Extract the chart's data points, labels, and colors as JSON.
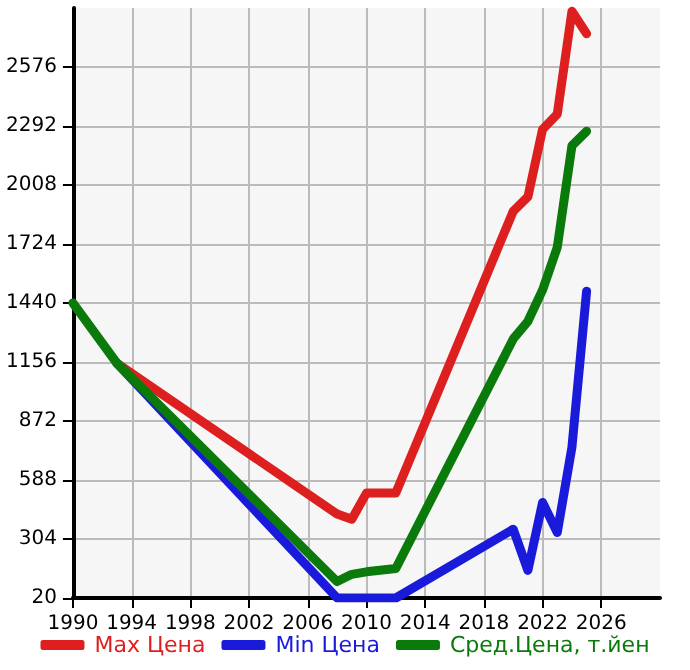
{
  "chart_data": {
    "type": "line",
    "x": [
      1990,
      1993,
      2008,
      2009,
      2010,
      2012,
      2020,
      2021,
      2022,
      2023,
      2024,
      2025
    ],
    "series": [
      {
        "name": "Max Цена",
        "color": "#dd1f1f",
        "values": [
          null,
          1150,
          424,
          399,
          525,
          525,
          1882,
          1951,
          2276,
          2349,
          2844,
          2736
        ]
      },
      {
        "name": "Min Цена",
        "color": "#1a1adb",
        "values": [
          null,
          1150,
          20,
          20,
          20,
          20,
          351,
          153,
          480,
          335,
          746,
          1497
        ]
      },
      {
        "name": "Сред.Цена, т.йен",
        "color": "#0a7a0a",
        "values": [
          1440,
          1150,
          99,
          134,
          146,
          162,
          1267,
          1352,
          1503,
          1708,
          2197,
          2267
        ]
      }
    ],
    "xlim": [
      1990,
      2030
    ],
    "xticks": [
      1990,
      1994,
      1998,
      2002,
      2006,
      2010,
      2014,
      2018,
      2022,
      2026
    ],
    "ylim": [
      20,
      2860
    ],
    "yticks": [
      20,
      304,
      588,
      872,
      1156,
      1440,
      1724,
      2008,
      2292,
      2576
    ],
    "grid": true,
    "legend": "bottom",
    "marker": "none",
    "line_style": "solid"
  }
}
